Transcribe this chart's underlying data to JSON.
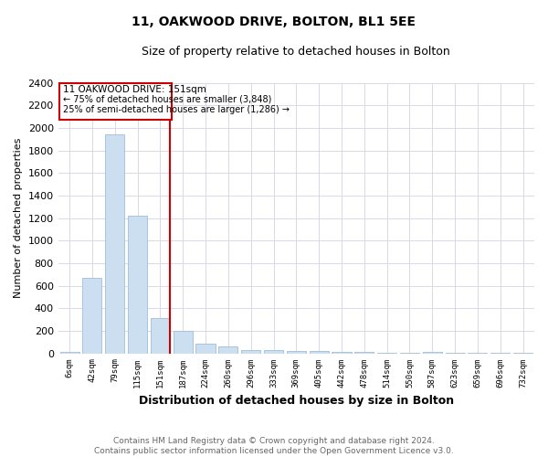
{
  "title": "11, OAKWOOD DRIVE, BOLTON, BL1 5EE",
  "subtitle": "Size of property relative to detached houses in Bolton",
  "xlabel": "Distribution of detached houses by size in Bolton",
  "ylabel": "Number of detached properties",
  "annotation_line1": "11 OAKWOOD DRIVE: 151sqm",
  "annotation_line2": "← 75% of detached houses are smaller (3,848)",
  "annotation_line3": "25% of semi-detached houses are larger (1,286) →",
  "categories": [
    "6sqm",
    "42sqm",
    "79sqm",
    "115sqm",
    "151sqm",
    "187sqm",
    "224sqm",
    "260sqm",
    "296sqm",
    "333sqm",
    "369sqm",
    "405sqm",
    "442sqm",
    "478sqm",
    "514sqm",
    "550sqm",
    "587sqm",
    "623sqm",
    "659sqm",
    "696sqm",
    "732sqm"
  ],
  "values": [
    15,
    670,
    1940,
    1220,
    310,
    200,
    85,
    60,
    25,
    25,
    22,
    20,
    12,
    10,
    5,
    5,
    15,
    2,
    2,
    2,
    2
  ],
  "bar_color": "#ccdff0",
  "bar_edge_color": "#a0bdd8",
  "vline_color": "#cc0000",
  "vline_index": 4,
  "box_edge_color": "#cc0000",
  "footer_line1": "Contains HM Land Registry data © Crown copyright and database right 2024.",
  "footer_line2": "Contains public sector information licensed under the Open Government Licence v3.0.",
  "ylim": [
    0,
    2400
  ],
  "yticks": [
    0,
    200,
    400,
    600,
    800,
    1000,
    1200,
    1400,
    1600,
    1800,
    2000,
    2200,
    2400
  ],
  "background_color": "#ffffff",
  "grid_color": "#d8d8e8"
}
